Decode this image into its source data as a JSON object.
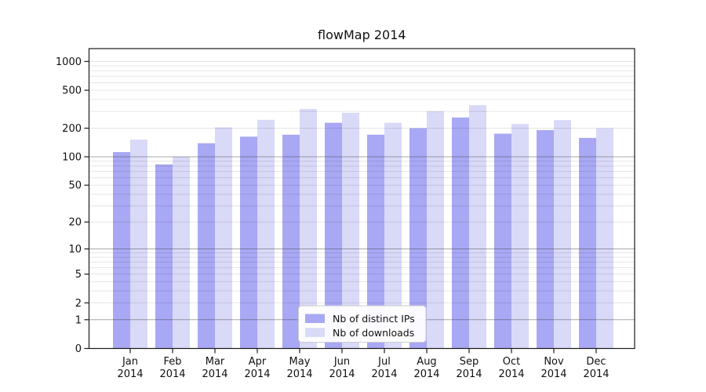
{
  "figure": {
    "title": "flowMap 2014"
  },
  "chart_data": {
    "type": "bar",
    "title": "flowMap 2014",
    "categories": [
      "Jan",
      "Feb",
      "Mar",
      "Apr",
      "May",
      "Jun",
      "Jul",
      "Aug",
      "Sep",
      "Oct",
      "Nov",
      "Dec"
    ],
    "x_tick_year_line": "2014",
    "series": [
      {
        "name": "Nb of distinct IPs",
        "key": "distinct-ips",
        "color": "#a8a8f4",
        "values": [
          112,
          83,
          139,
          163,
          171,
          228,
          171,
          200,
          259,
          175,
          191,
          158
        ]
      },
      {
        "name": "Nb of downloads",
        "key": "downloads",
        "color": "#d9d9f8",
        "values": [
          152,
          100,
          204,
          245,
          319,
          290,
          228,
          301,
          349,
          221,
          243,
          200
        ]
      }
    ],
    "y_scale": "log10(value+1)",
    "y_ticks": [
      0,
      1,
      2,
      5,
      10,
      20,
      50,
      100,
      200,
      500,
      1000
    ],
    "ylim": [
      0,
      1360
    ],
    "grid": "horizontal major and minor gridlines",
    "legend_position": "inside bottom-center",
    "colors": {
      "bar_distinct_ips": "#a8a8f4",
      "bar_downloads": "#d9d9f8",
      "major_grid": "#a2a2a2",
      "minor_grid": "#e6e6e6",
      "axis": "#1a1a1a",
      "legend_border": "#cccccc",
      "background": "#ffffff"
    }
  }
}
